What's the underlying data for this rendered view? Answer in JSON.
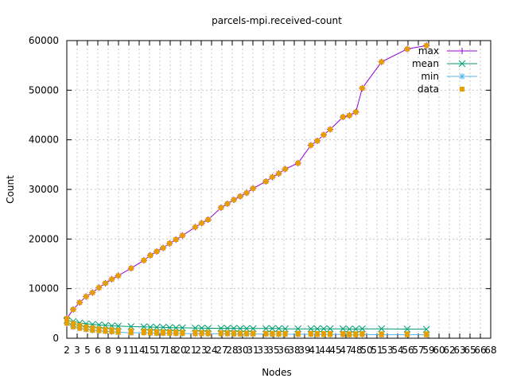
{
  "chart_data": {
    "type": "line",
    "title": "parcels-mpi.received-count",
    "xlabel": "Nodes",
    "ylabel": "Count",
    "xlim": [
      2,
      68
    ],
    "ylim": [
      0,
      60000
    ],
    "x_ticks": [
      "2",
      "3",
      "5",
      "6",
      "8",
      "9",
      "11",
      "14",
      "15",
      "17",
      "18",
      "20",
      "21",
      "23",
      "24",
      "27",
      "28",
      "30",
      "31",
      "33",
      "35",
      "36",
      "38",
      "39",
      "41",
      "44",
      "45",
      "47",
      "48",
      "50",
      "51",
      "53",
      "54",
      "56",
      "57",
      "59",
      "60",
      "62",
      "63",
      "65",
      "66",
      "68"
    ],
    "y_ticks": [
      "0",
      "10000",
      "20000",
      "30000",
      "40000",
      "50000",
      "60000"
    ],
    "grid": true,
    "legend_position": "top-right",
    "series": [
      {
        "name": "max",
        "color": "#9400d3",
        "marker": "plus",
        "points": [
          [
            2,
            4000
          ],
          [
            3,
            5800
          ],
          [
            4,
            7200
          ],
          [
            5,
            8400
          ],
          [
            6,
            9200
          ],
          [
            7,
            10200
          ],
          [
            8,
            11100
          ],
          [
            9,
            11900
          ],
          [
            10,
            12600
          ],
          [
            12,
            14100
          ],
          [
            14,
            15700
          ],
          [
            15,
            16700
          ],
          [
            16,
            17500
          ],
          [
            17,
            18200
          ],
          [
            18,
            19100
          ],
          [
            19,
            19900
          ],
          [
            20,
            20700
          ],
          [
            22,
            22400
          ],
          [
            23,
            23200
          ],
          [
            24,
            23900
          ],
          [
            26,
            26300
          ],
          [
            27,
            27100
          ],
          [
            28,
            27900
          ],
          [
            29,
            28600
          ],
          [
            30,
            29300
          ],
          [
            31,
            30200
          ],
          [
            33,
            31600
          ],
          [
            34,
            32500
          ],
          [
            35,
            33200
          ],
          [
            36,
            34100
          ],
          [
            38,
            35300
          ],
          [
            40,
            38900
          ],
          [
            41,
            39800
          ],
          [
            42,
            41000
          ],
          [
            43,
            42100
          ],
          [
            45,
            44600
          ],
          [
            46,
            44900
          ],
          [
            47,
            45600
          ],
          [
            48,
            50400
          ],
          [
            51,
            55700
          ],
          [
            55,
            58300
          ],
          [
            58,
            59000
          ]
        ]
      },
      {
        "name": "mean",
        "color": "#009e73",
        "marker": "x",
        "points": [
          [
            2,
            3600
          ],
          [
            3,
            3400
          ],
          [
            4,
            3100
          ],
          [
            5,
            2900
          ],
          [
            6,
            2800
          ],
          [
            7,
            2700
          ],
          [
            8,
            2600
          ],
          [
            9,
            2500
          ],
          [
            10,
            2450
          ],
          [
            12,
            2350
          ],
          [
            14,
            2300
          ],
          [
            15,
            2250
          ],
          [
            16,
            2200
          ],
          [
            17,
            2200
          ],
          [
            18,
            2150
          ],
          [
            19,
            2100
          ],
          [
            20,
            2100
          ],
          [
            22,
            2050
          ],
          [
            23,
            2050
          ],
          [
            24,
            2000
          ],
          [
            26,
            2000
          ],
          [
            27,
            2000
          ],
          [
            28,
            2000
          ],
          [
            29,
            1950
          ],
          [
            30,
            1950
          ],
          [
            31,
            1950
          ],
          [
            33,
            1950
          ],
          [
            34,
            1950
          ],
          [
            35,
            1950
          ],
          [
            36,
            1900
          ],
          [
            38,
            1900
          ],
          [
            40,
            1900
          ],
          [
            41,
            1900
          ],
          [
            42,
            1900
          ],
          [
            43,
            1900
          ],
          [
            45,
            1900
          ],
          [
            46,
            1850
          ],
          [
            47,
            1850
          ],
          [
            48,
            1900
          ],
          [
            51,
            1900
          ],
          [
            55,
            1850
          ],
          [
            58,
            1800
          ]
        ]
      },
      {
        "name": "min",
        "color": "#56b4e9",
        "marker": "star",
        "points": [
          [
            2,
            3000
          ],
          [
            3,
            2300
          ],
          [
            4,
            2000
          ],
          [
            5,
            1800
          ],
          [
            6,
            1600
          ],
          [
            7,
            1500
          ],
          [
            8,
            1400
          ],
          [
            9,
            1300
          ],
          [
            10,
            1200
          ],
          [
            12,
            1100
          ],
          [
            14,
            1100
          ],
          [
            15,
            1050
          ],
          [
            16,
            1000
          ],
          [
            17,
            1000
          ],
          [
            18,
            1000
          ],
          [
            19,
            950
          ],
          [
            20,
            950
          ],
          [
            22,
            900
          ],
          [
            23,
            900
          ],
          [
            24,
            900
          ],
          [
            26,
            900
          ],
          [
            27,
            900
          ],
          [
            28,
            850
          ],
          [
            29,
            850
          ],
          [
            30,
            850
          ],
          [
            31,
            850
          ],
          [
            33,
            850
          ],
          [
            34,
            800
          ],
          [
            35,
            800
          ],
          [
            36,
            800
          ],
          [
            38,
            800
          ],
          [
            40,
            800
          ],
          [
            41,
            750
          ],
          [
            42,
            750
          ],
          [
            43,
            750
          ],
          [
            45,
            750
          ],
          [
            46,
            700
          ],
          [
            47,
            700
          ],
          [
            48,
            750
          ],
          [
            51,
            700
          ],
          [
            55,
            700
          ],
          [
            58,
            700
          ]
        ]
      },
      {
        "name": "data",
        "color": "#e69f00",
        "marker": "square",
        "points": [
          [
            2,
            4000
          ],
          [
            3,
            5800
          ],
          [
            4,
            7200
          ],
          [
            5,
            8400
          ],
          [
            6,
            9200
          ],
          [
            7,
            10200
          ],
          [
            8,
            11100
          ],
          [
            9,
            11900
          ],
          [
            10,
            12600
          ],
          [
            12,
            14100
          ],
          [
            14,
            15700
          ],
          [
            15,
            16700
          ],
          [
            16,
            17500
          ],
          [
            17,
            18200
          ],
          [
            18,
            19100
          ],
          [
            19,
            19900
          ],
          [
            20,
            20700
          ],
          [
            22,
            22400
          ],
          [
            23,
            23200
          ],
          [
            24,
            23900
          ],
          [
            26,
            26300
          ],
          [
            27,
            27100
          ],
          [
            28,
            27900
          ],
          [
            29,
            28600
          ],
          [
            30,
            29300
          ],
          [
            31,
            30200
          ],
          [
            33,
            31600
          ],
          [
            34,
            32500
          ],
          [
            35,
            33200
          ],
          [
            36,
            34100
          ],
          [
            38,
            35300
          ],
          [
            40,
            38900
          ],
          [
            41,
            39800
          ],
          [
            42,
            41000
          ],
          [
            43,
            42100
          ],
          [
            45,
            44600
          ],
          [
            46,
            44900
          ],
          [
            47,
            45600
          ],
          [
            48,
            50400
          ],
          [
            51,
            55700
          ],
          [
            55,
            58300
          ],
          [
            58,
            59000
          ],
          [
            2,
            3600
          ],
          [
            3,
            3000
          ],
          [
            4,
            2600
          ],
          [
            5,
            2300
          ],
          [
            6,
            2100
          ],
          [
            7,
            1900
          ],
          [
            8,
            1800
          ],
          [
            9,
            1700
          ],
          [
            10,
            1600
          ],
          [
            12,
            1500
          ],
          [
            14,
            1450
          ],
          [
            15,
            1400
          ],
          [
            16,
            1350
          ],
          [
            17,
            1300
          ],
          [
            18,
            1300
          ],
          [
            19,
            1250
          ],
          [
            20,
            1200
          ],
          [
            22,
            1200
          ],
          [
            23,
            1150
          ],
          [
            24,
            1150
          ],
          [
            26,
            1100
          ],
          [
            27,
            1100
          ],
          [
            28,
            1100
          ],
          [
            29,
            1050
          ],
          [
            30,
            1050
          ],
          [
            31,
            1050
          ],
          [
            33,
            1000
          ],
          [
            34,
            1000
          ],
          [
            35,
            1000
          ],
          [
            36,
            1000
          ],
          [
            38,
            1000
          ],
          [
            40,
            1000
          ],
          [
            41,
            950
          ],
          [
            42,
            950
          ],
          [
            43,
            950
          ],
          [
            45,
            950
          ],
          [
            46,
            900
          ],
          [
            47,
            900
          ],
          [
            48,
            950
          ],
          [
            51,
            900
          ],
          [
            55,
            900
          ],
          [
            58,
            900
          ],
          [
            2,
            3000
          ],
          [
            3,
            2300
          ],
          [
            4,
            2000
          ],
          [
            5,
            1800
          ],
          [
            6,
            1600
          ],
          [
            7,
            1500
          ],
          [
            8,
            1400
          ],
          [
            9,
            1300
          ],
          [
            10,
            1200
          ],
          [
            12,
            1100
          ],
          [
            14,
            1100
          ],
          [
            15,
            1050
          ],
          [
            16,
            1000
          ],
          [
            17,
            1000
          ],
          [
            18,
            1000
          ],
          [
            19,
            950
          ],
          [
            20,
            950
          ],
          [
            22,
            900
          ],
          [
            23,
            900
          ],
          [
            24,
            900
          ],
          [
            26,
            900
          ],
          [
            27,
            900
          ],
          [
            28,
            850
          ],
          [
            29,
            850
          ],
          [
            30,
            850
          ],
          [
            31,
            850
          ],
          [
            33,
            850
          ],
          [
            34,
            800
          ],
          [
            35,
            800
          ],
          [
            36,
            800
          ],
          [
            38,
            800
          ],
          [
            40,
            800
          ],
          [
            41,
            750
          ],
          [
            42,
            750
          ],
          [
            43,
            750
          ],
          [
            45,
            750
          ],
          [
            46,
            700
          ],
          [
            47,
            700
          ],
          [
            48,
            750
          ],
          [
            51,
            700
          ],
          [
            55,
            700
          ],
          [
            58,
            700
          ]
        ]
      }
    ]
  }
}
